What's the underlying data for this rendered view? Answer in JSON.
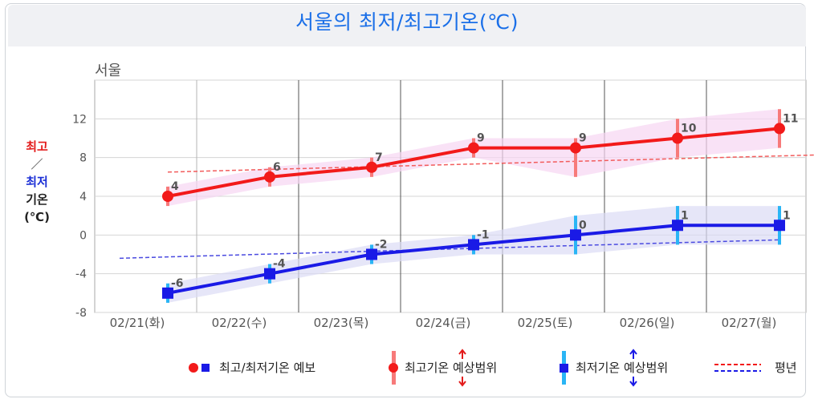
{
  "title": "서울의 최저/최고기온(℃)",
  "city": "서울",
  "ylabel": {
    "high": "최고",
    "sep": "／",
    "low": "최저",
    "temp": "기온",
    "unit": "(℃)"
  },
  "legend": {
    "forecast": "최고/최저기온 예보",
    "high_range": "최고기온 예상범위",
    "low_range": "최저기온 예상범위",
    "normal": "평년"
  },
  "colors": {
    "high": "#f21a1a",
    "low": "#1a1ae6",
    "high_band": "#f7d6f2",
    "low_band": "#dcdcf5",
    "normal_high": "#f25c5c",
    "normal_low": "#4a4ae0",
    "range_high": "#f77a7a",
    "range_low": "#2ab5f5"
  },
  "chart_data": {
    "type": "line",
    "categories": [
      "02/21(화)",
      "02/22(수)",
      "02/23(목)",
      "02/24(금)",
      "02/25(토)",
      "02/26(일)",
      "02/27(월)"
    ],
    "ylim": [
      -8,
      16
    ],
    "yticks": [
      -8,
      -4,
      0,
      4,
      8,
      12
    ],
    "series": [
      {
        "name": "최고기온",
        "values": [
          4,
          6,
          7,
          9,
          9,
          10,
          11
        ],
        "range_low": [
          3,
          5,
          6,
          8,
          6,
          8,
          9
        ],
        "range_high": [
          5,
          7,
          8,
          10,
          10,
          12,
          13
        ]
      },
      {
        "name": "최저기온",
        "values": [
          -6,
          -4,
          -2,
          -1,
          0,
          1,
          1
        ],
        "range_low": [
          -7,
          -5,
          -3,
          -2,
          -2,
          -1,
          -1
        ],
        "range_high": [
          -5,
          -3,
          -1,
          0,
          2,
          3,
          3
        ]
      }
    ],
    "normal_high": [
      6.5,
      8.3
    ],
    "normal_low": [
      -2.4,
      -0.5
    ]
  }
}
